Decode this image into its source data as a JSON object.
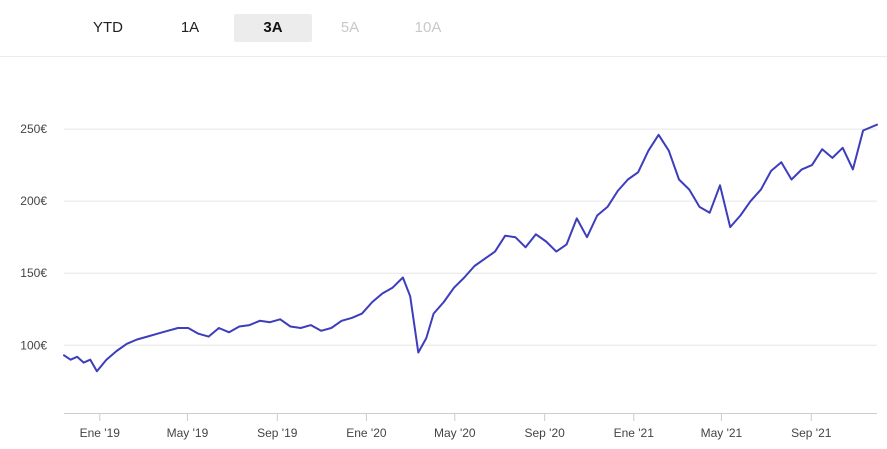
{
  "range_tabs": [
    {
      "label": "YTD",
      "state": "normal"
    },
    {
      "label": "1A",
      "state": "normal"
    },
    {
      "label": "3A",
      "state": "active"
    },
    {
      "label": "5A",
      "state": "disabled"
    },
    {
      "label": "10A",
      "state": "disabled"
    }
  ],
  "colors": {
    "line": "#3d3dbd",
    "grid": "#e6e6e6",
    "axis": "#cccccc",
    "active_tab_bg": "#ececec",
    "disabled_tab": "#c8c8c8"
  },
  "chart_data": {
    "type": "line",
    "title": "",
    "xlabel": "",
    "ylabel": "",
    "x_range": [
      "2018-11-13",
      "2021-11-30"
    ],
    "ylim": [
      53,
      300
    ],
    "y_ticks": [
      {
        "value": 100,
        "label": "100€"
      },
      {
        "value": 150,
        "label": "150€"
      },
      {
        "value": 200,
        "label": "200€"
      },
      {
        "value": 250,
        "label": "250€"
      }
    ],
    "x_ticks": [
      {
        "date": "2019-01-01",
        "label": "Ene '19"
      },
      {
        "date": "2019-05-01",
        "label": "May '19"
      },
      {
        "date": "2019-09-01",
        "label": "Sep '19"
      },
      {
        "date": "2020-01-01",
        "label": "Ene '20"
      },
      {
        "date": "2020-05-01",
        "label": "May '20"
      },
      {
        "date": "2020-09-01",
        "label": "Sep '20"
      },
      {
        "date": "2021-01-01",
        "label": "Ene '21"
      },
      {
        "date": "2021-05-01",
        "label": "May '21"
      },
      {
        "date": "2021-09-01",
        "label": "Sep '21"
      }
    ],
    "grid": true,
    "legend": "none",
    "series": [
      {
        "x": [
          "2018-11-13",
          "2018-11-22",
          "2018-12-01",
          "2018-12-10",
          "2018-12-19",
          "2018-12-28",
          "2019-01-10",
          "2019-01-24",
          "2019-02-07",
          "2019-02-21",
          "2019-03-07",
          "2019-03-21",
          "2019-04-04",
          "2019-04-18",
          "2019-05-02",
          "2019-05-16",
          "2019-05-30",
          "2019-06-13",
          "2019-06-27",
          "2019-07-11",
          "2019-07-25",
          "2019-08-08",
          "2019-08-22",
          "2019-09-05",
          "2019-09-19",
          "2019-10-03",
          "2019-10-17",
          "2019-10-31",
          "2019-11-14",
          "2019-11-28",
          "2019-12-12",
          "2019-12-26",
          "2020-01-09",
          "2020-01-23",
          "2020-02-06",
          "2020-02-20",
          "2020-03-01",
          "2020-03-12",
          "2020-03-23",
          "2020-04-02",
          "2020-04-16",
          "2020-04-30",
          "2020-05-14",
          "2020-05-28",
          "2020-06-11",
          "2020-06-25",
          "2020-07-09",
          "2020-07-23",
          "2020-08-06",
          "2020-08-20",
          "2020-09-03",
          "2020-09-17",
          "2020-10-01",
          "2020-10-15",
          "2020-10-29",
          "2020-11-12",
          "2020-11-26",
          "2020-12-10",
          "2020-12-24",
          "2021-01-07",
          "2021-01-21",
          "2021-02-04",
          "2021-02-18",
          "2021-03-04",
          "2021-03-18",
          "2021-04-01",
          "2021-04-15",
          "2021-04-29",
          "2021-05-13",
          "2021-05-27",
          "2021-06-10",
          "2021-06-24",
          "2021-07-08",
          "2021-07-22",
          "2021-08-05",
          "2021-08-19",
          "2021-09-02",
          "2021-09-16",
          "2021-09-30",
          "2021-10-14",
          "2021-10-28",
          "2021-11-11",
          "2021-11-30"
        ],
        "values": [
          93,
          90,
          92,
          88,
          90,
          82,
          90,
          96,
          101,
          104,
          106,
          108,
          110,
          112,
          112,
          108,
          106,
          112,
          109,
          113,
          114,
          117,
          116,
          118,
          113,
          112,
          114,
          110,
          112,
          117,
          119,
          122,
          130,
          136,
          140,
          147,
          134,
          95,
          105,
          122,
          130,
          140,
          147,
          155,
          160,
          165,
          176,
          175,
          168,
          177,
          172,
          165,
          170,
          188,
          175,
          190,
          196,
          207,
          215,
          220,
          235,
          246,
          235,
          215,
          208,
          196,
          192,
          211,
          182,
          190,
          200,
          208,
          221,
          227,
          215,
          222,
          225,
          236,
          230,
          237,
          222,
          249,
          253
        ]
      }
    ]
  }
}
